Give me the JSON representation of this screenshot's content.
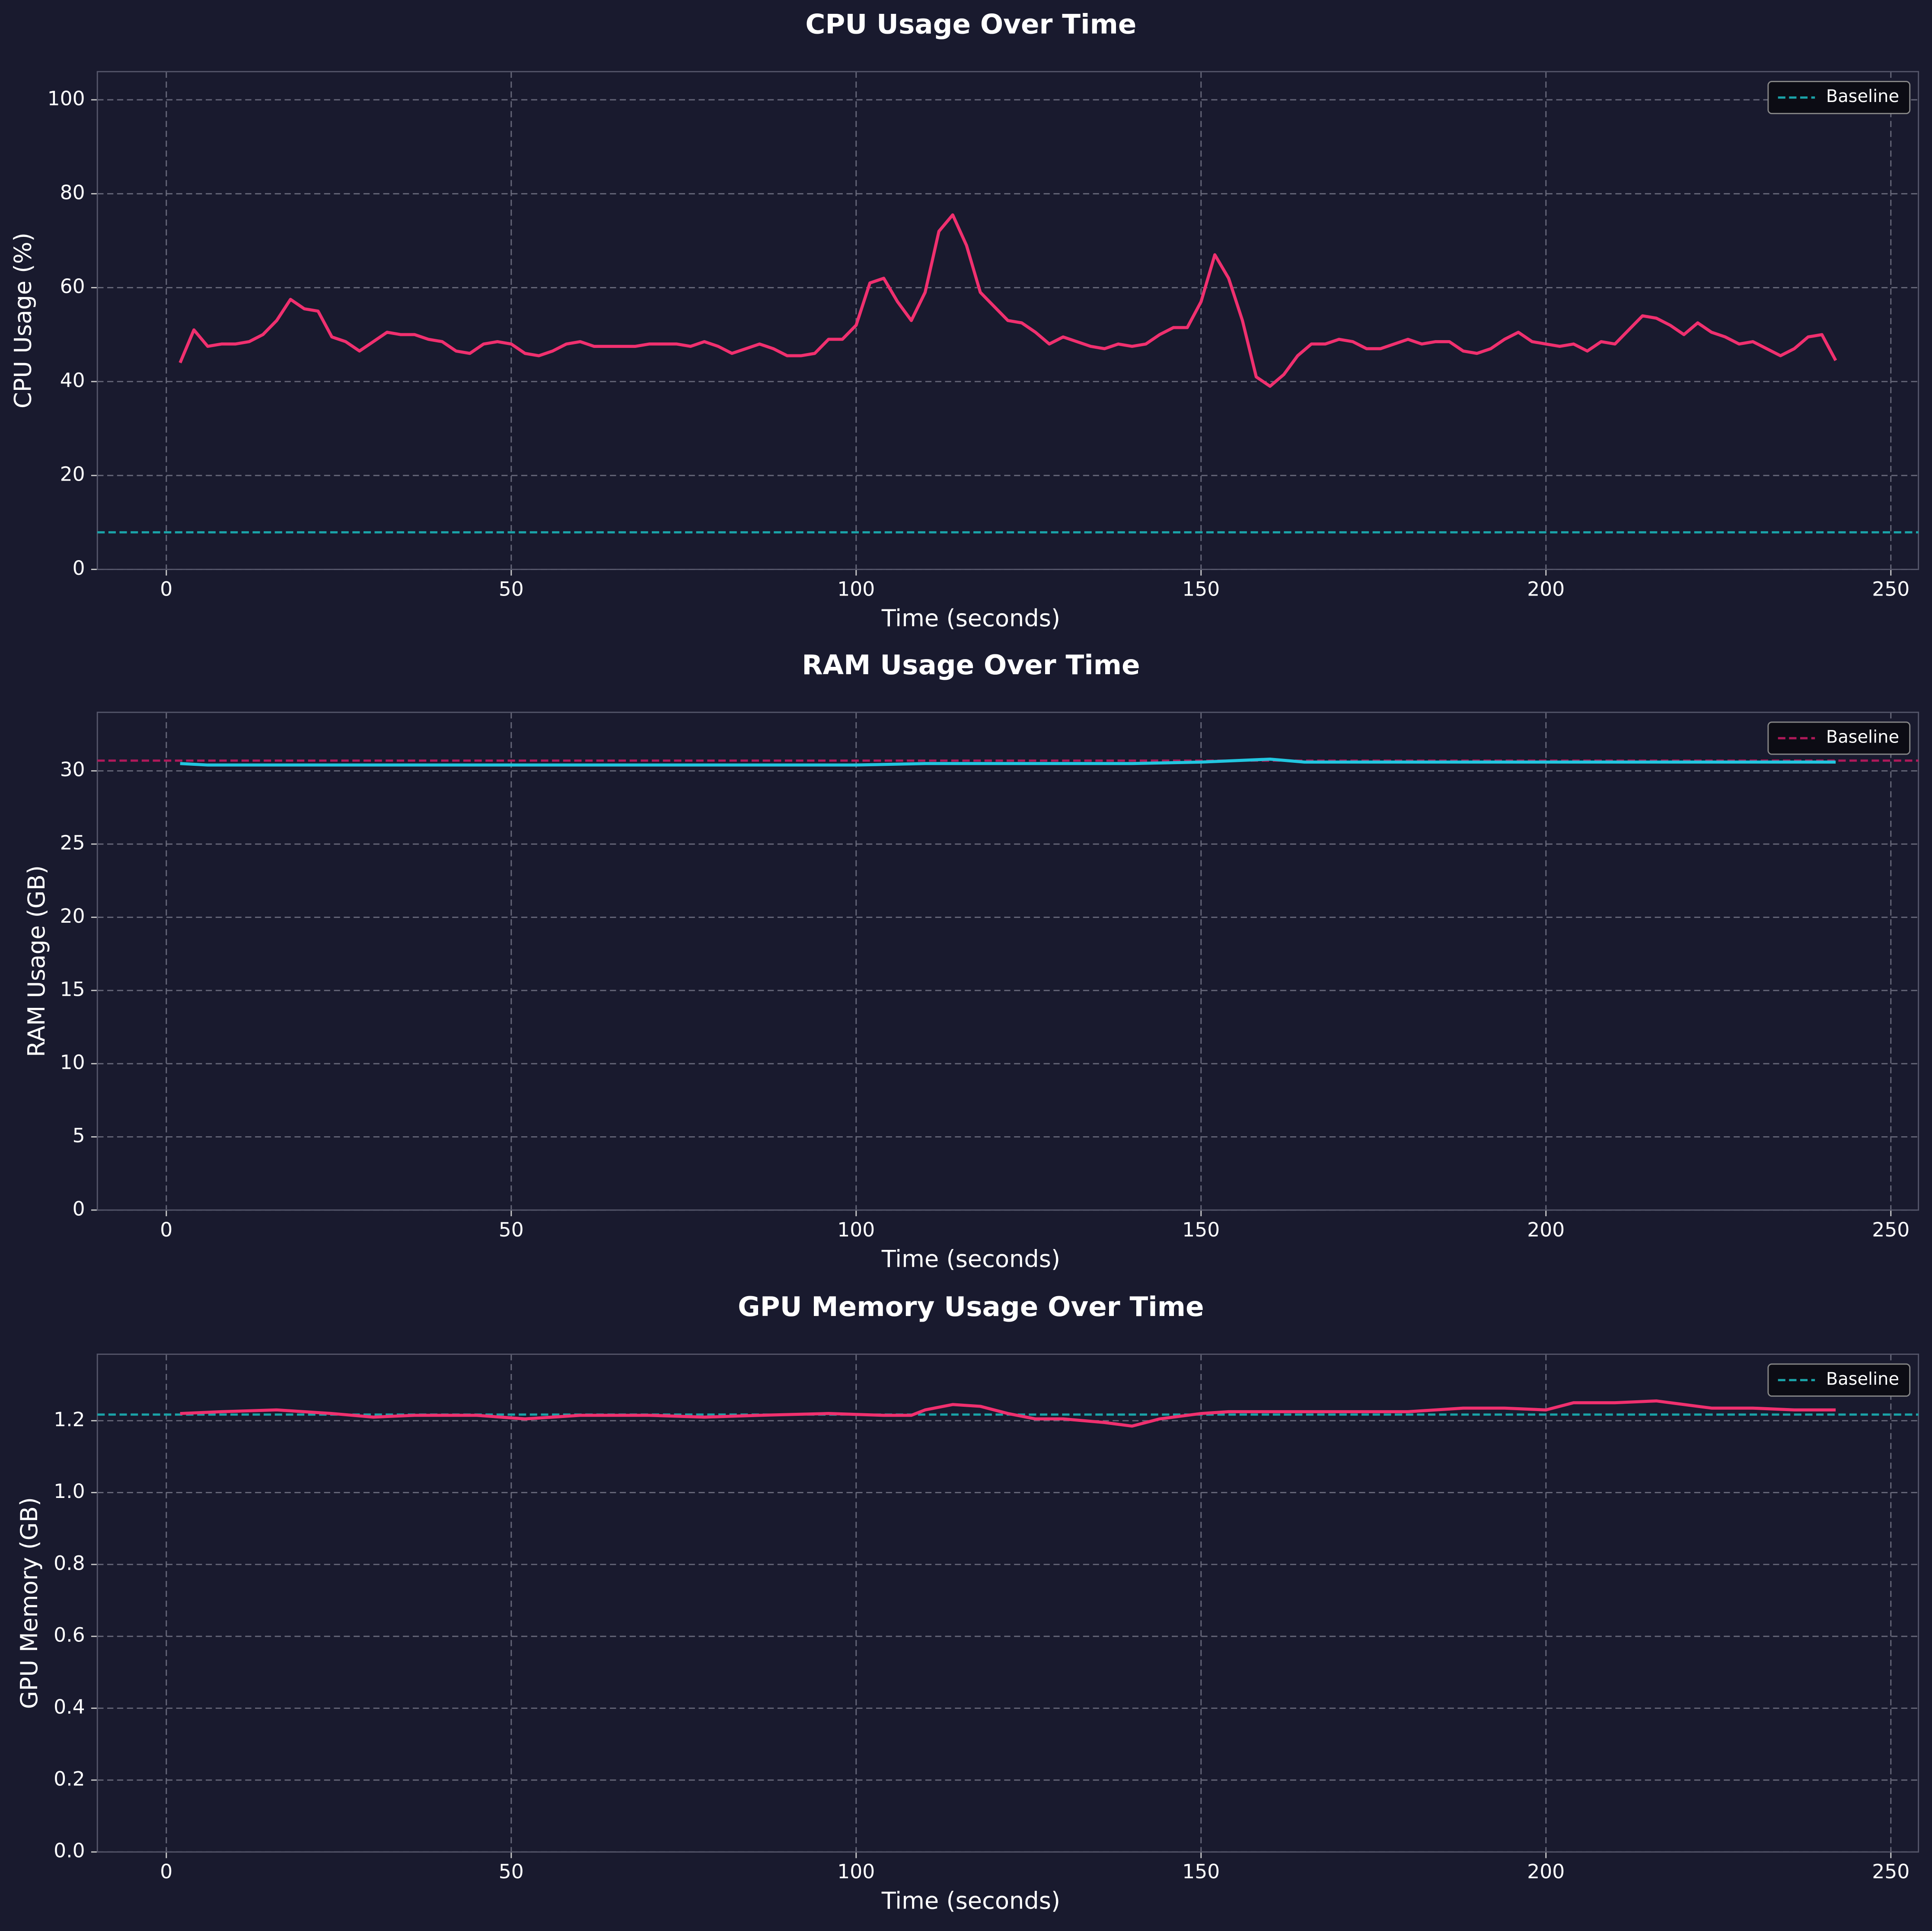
{
  "chart_data": [
    {
      "type": "line",
      "title": "CPU Usage Over Time",
      "xlabel": "Time (seconds)",
      "ylabel": "CPU Usage (%)",
      "color": "#f0306f",
      "x": [
        2,
        4,
        6,
        8,
        10,
        12,
        14,
        16,
        18,
        20,
        22,
        24,
        26,
        28,
        30,
        32,
        34,
        36,
        38,
        40,
        42,
        44,
        46,
        48,
        50,
        52,
        54,
        56,
        58,
        60,
        62,
        64,
        66,
        68,
        70,
        72,
        74,
        76,
        78,
        80,
        82,
        84,
        86,
        88,
        90,
        92,
        94,
        96,
        98,
        100,
        102,
        104,
        106,
        108,
        110,
        112,
        114,
        116,
        118,
        120,
        122,
        124,
        126,
        128,
        130,
        132,
        134,
        136,
        138,
        140,
        142,
        144,
        146,
        148,
        150,
        152,
        154,
        156,
        158,
        160,
        162,
        164,
        166,
        168,
        170,
        172,
        174,
        176,
        178,
        180,
        182,
        184,
        186,
        188,
        190,
        192,
        194,
        196,
        198,
        200,
        202,
        204,
        206,
        208,
        210,
        212,
        214,
        216,
        218,
        220,
        222,
        224,
        226,
        228,
        230,
        232,
        234,
        236,
        238,
        240,
        242
      ],
      "values": [
        44,
        51,
        47.5,
        48,
        48,
        48.5,
        50,
        53,
        57.5,
        55.5,
        55,
        49.5,
        48.5,
        46.5,
        48.5,
        50.5,
        50,
        50,
        49,
        48.5,
        46.5,
        46,
        48,
        48.5,
        48,
        46,
        45.5,
        46.5,
        48,
        48.5,
        47.5,
        47.5,
        47.5,
        47.5,
        48,
        48,
        48,
        47.5,
        48.5,
        47.5,
        46,
        47,
        48,
        47,
        45.5,
        45.5,
        46,
        49,
        49,
        52,
        61,
        62,
        57,
        53,
        59,
        72,
        75.5,
        69,
        59,
        56,
        53,
        52.5,
        50.5,
        48,
        49.5,
        48.5,
        47.5,
        47,
        48,
        47.5,
        48,
        50,
        51.5,
        51.5,
        57,
        67,
        62,
        53,
        41,
        39,
        41.5,
        45.5,
        48,
        48,
        49,
        48.5,
        47,
        47,
        48,
        49,
        48,
        48.5,
        48.5,
        46.5,
        46,
        47,
        49,
        50.5,
        48.5,
        48,
        47.5,
        48,
        46.5,
        48.5,
        48,
        51,
        54,
        53.5,
        52,
        50,
        52.5,
        50.5,
        49.5,
        48,
        48.5,
        47,
        45.5,
        47,
        49.5,
        50,
        44.5
      ],
      "baseline": {
        "name": "Baseline",
        "value": 7.9,
        "color": "#1aa3a8"
      },
      "xlim": [
        -10,
        254
      ],
      "ylim": [
        0,
        106
      ],
      "xticks": [
        0,
        50,
        100,
        150,
        200,
        250
      ],
      "yticks": [
        0,
        20,
        40,
        60,
        80,
        100
      ],
      "grid": true,
      "legend": "upper right"
    },
    {
      "type": "line",
      "title": "RAM Usage Over Time",
      "xlabel": "Time (seconds)",
      "ylabel": "RAM Usage (GB)",
      "color": "#22c6e0",
      "x": [
        2,
        6,
        10,
        20,
        30,
        40,
        50,
        60,
        70,
        80,
        90,
        100,
        110,
        120,
        130,
        140,
        150,
        155,
        160,
        165,
        170,
        180,
        190,
        200,
        210,
        220,
        230,
        242
      ],
      "values": [
        30.5,
        30.4,
        30.4,
        30.4,
        30.4,
        30.4,
        30.4,
        30.4,
        30.4,
        30.4,
        30.4,
        30.4,
        30.5,
        30.5,
        30.5,
        30.5,
        30.6,
        30.7,
        30.8,
        30.6,
        30.6,
        30.6,
        30.6,
        30.6,
        30.6,
        30.6,
        30.6,
        30.6
      ],
      "baseline": {
        "name": "Baseline",
        "value": 30.7,
        "color": "#b0195a"
      },
      "xlim": [
        -10,
        254
      ],
      "ylim": [
        0,
        34
      ],
      "xticks": [
        0,
        50,
        100,
        150,
        200,
        250
      ],
      "yticks": [
        0,
        5,
        10,
        15,
        20,
        25,
        30
      ],
      "grid": true,
      "legend": "upper right"
    },
    {
      "type": "line",
      "title": "GPU Memory Usage Over Time",
      "xlabel": "Time (seconds)",
      "ylabel": "GPU Memory (GB)",
      "color": "#f0306f",
      "x": [
        2,
        8,
        16,
        24,
        30,
        36,
        45,
        52,
        60,
        70,
        78,
        86,
        96,
        104,
        108,
        110,
        114,
        118,
        122,
        126,
        130,
        136,
        140,
        144,
        150,
        154,
        160,
        170,
        180,
        188,
        194,
        200,
        204,
        210,
        216,
        220,
        224,
        230,
        236,
        242
      ],
      "values": [
        1.22,
        1.225,
        1.23,
        1.22,
        1.21,
        1.215,
        1.215,
        1.205,
        1.215,
        1.215,
        1.21,
        1.215,
        1.22,
        1.215,
        1.215,
        1.23,
        1.245,
        1.24,
        1.22,
        1.205,
        1.205,
        1.195,
        1.185,
        1.205,
        1.22,
        1.225,
        1.225,
        1.225,
        1.225,
        1.235,
        1.235,
        1.23,
        1.25,
        1.25,
        1.255,
        1.245,
        1.235,
        1.235,
        1.23,
        1.23
      ],
      "baseline": {
        "name": "Baseline",
        "value": 1.217,
        "color": "#1aa3a8"
      },
      "xlim": [
        -10,
        254
      ],
      "ylim": [
        0,
        1.385
      ],
      "xticks": [
        0,
        50,
        100,
        150,
        200,
        250
      ],
      "yticks": [
        {
          "value": 0,
          "label": "0.0"
        },
        0.2,
        0.4,
        0.6,
        0.8,
        {
          "value": 1,
          "label": "1.0"
        },
        1.2
      ],
      "grid": true,
      "legend": "upper right"
    }
  ]
}
